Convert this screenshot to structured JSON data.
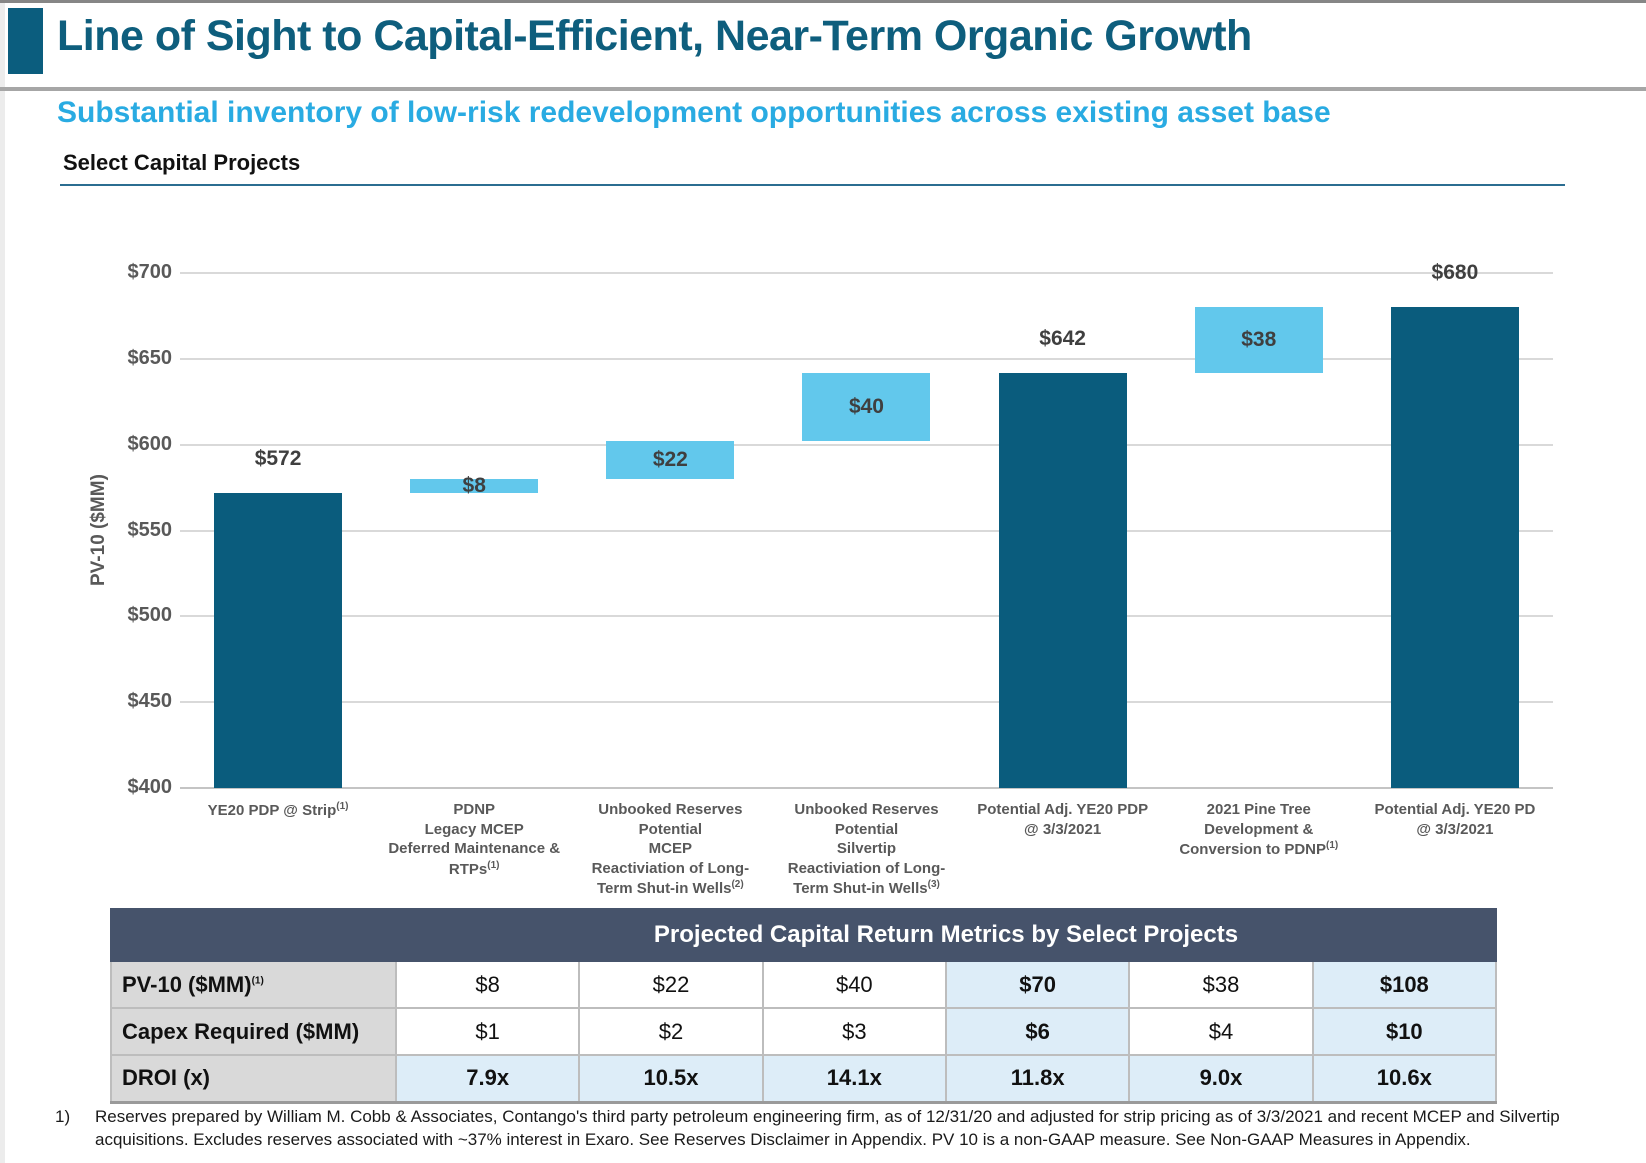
{
  "page": {
    "title": "Line of Sight to Capital-Efficient, Near-Term Organic Growth",
    "subtitle": "Substantial inventory of low-risk redevelopment opportunities across existing asset base",
    "section_heading": "Select Capital Projects"
  },
  "colors": {
    "bar_dark_teal": "#0a5c7d",
    "bar_light_blue": "#62c8ec",
    "title_teal": "#0e5e7d",
    "subtitle_blue": "#29abe2",
    "table_header_bg": "#46536b",
    "row_label_bg": "#d9d9d9",
    "highlight_cell_bg": "#ddedf8",
    "gridline_gray": "#d9d9d9"
  },
  "chart_data": {
    "type": "bar",
    "subtype": "waterfall",
    "title": "Select Capital Projects",
    "xlabel": "",
    "ylabel": "PV-10 ($MM)",
    "ylim": [
      400,
      700
    ],
    "ytick_interval": 50,
    "ytick_labels_top_to_bottom": [
      "$700",
      "$650",
      "$600",
      "$550",
      "$500",
      "$450",
      "$400"
    ],
    "grid": true,
    "legend": "none",
    "bars": [
      {
        "category_lines": [
          "YE20 PDP @ Strip"
        ],
        "category_sup": "(1)",
        "kind": "total",
        "start": 400,
        "end": 572,
        "value": 572,
        "value_label": "$572"
      },
      {
        "category_lines": [
          "PDNP",
          "Legacy MCEP",
          "Deferred Maintenance &",
          "RTPs"
        ],
        "category_sup": "(1)",
        "kind": "delta",
        "start": 572,
        "end": 580,
        "value": 8,
        "value_label": "$8"
      },
      {
        "category_lines": [
          "Unbooked Reserves",
          "Potential",
          "MCEP",
          "Reactiviation of Long-",
          "Term Shut-in Wells"
        ],
        "category_sup": "(2)",
        "kind": "delta",
        "start": 580,
        "end": 602,
        "value": 22,
        "value_label": "$22"
      },
      {
        "category_lines": [
          "Unbooked Reserves",
          "Potential",
          "Silvertip",
          "Reactiviation of Long-",
          "Term Shut-in Wells"
        ],
        "category_sup": "(3)",
        "kind": "delta",
        "start": 602,
        "end": 642,
        "value": 40,
        "value_label": "$40"
      },
      {
        "category_lines": [
          "Potential Adj. YE20 PDP",
          "@ 3/3/2021"
        ],
        "category_sup": null,
        "kind": "total",
        "start": 400,
        "end": 642,
        "value": 642,
        "value_label": "$642"
      },
      {
        "category_lines": [
          "2021 Pine Tree",
          "Development &",
          "Conversion to PDNP"
        ],
        "category_sup": "(1)",
        "kind": "delta",
        "start": 642,
        "end": 680,
        "value": 38,
        "value_label": "$38"
      },
      {
        "category_lines": [
          "Potential Adj. YE20 PD",
          "@ 3/3/2021"
        ],
        "category_sup": null,
        "kind": "total",
        "start": 400,
        "end": 680,
        "value": 680,
        "value_label": "$680"
      }
    ]
  },
  "table": {
    "title": "Projected Capital Return Metrics by Select Projects",
    "rows": [
      {
        "label": "PV-10 ($MM)",
        "label_sup": "(1)",
        "values": [
          "$8",
          "$22",
          "$40",
          "$70",
          "$38",
          "$108"
        ],
        "highlight_cols": [
          3,
          5
        ]
      },
      {
        "label": "Capex Required ($MM)",
        "label_sup": null,
        "values": [
          "$1",
          "$2",
          "$3",
          "$6",
          "$4",
          "$10"
        ],
        "highlight_cols": [
          3,
          5
        ]
      },
      {
        "label": "DROI (x)",
        "label_sup": null,
        "values": [
          "7.9x",
          "10.5x",
          "14.1x",
          "11.8x",
          "9.0x",
          "10.6x"
        ],
        "highlight_cols": [
          0,
          1,
          2,
          3,
          4,
          5
        ]
      }
    ]
  },
  "footnote": {
    "marker": "1)",
    "text": "Reserves prepared by William M. Cobb & Associates, Contango's third party petroleum engineering firm, as of 12/31/20 and adjusted for strip pricing as of 3/3/2021 and recent MCEP and Silvertip acquisitions. Excludes reserves associated with ~37% interest in Exaro. See Reserves Disclaimer in Appendix. PV 10 is a non-GAAP measure. See Non-GAAP Measures in Appendix."
  }
}
